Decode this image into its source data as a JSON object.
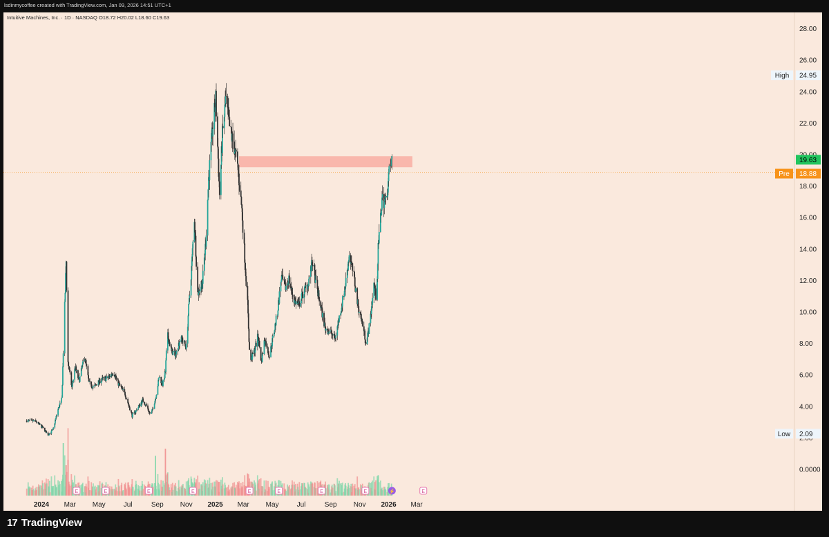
{
  "header": {
    "attribution": "lsdinmycoffee created with TradingView.com, Jan 09, 2026 14:51 UTC+1"
  },
  "legend": {
    "text": "Intuitive Machines, Inc. · 1D · NASDAQ  O18.72  H20.02  L18.60  C19.63"
  },
  "brand": {
    "logo": "17",
    "name": "TradingView"
  },
  "colors": {
    "background": "#fae9dd",
    "up": "#26a69a",
    "candle": "#333333",
    "volume_up": "#7fd6a9",
    "volume_down": "#f08f8f",
    "zone": "#f8b1a6",
    "last_price": "#22c55e",
    "pre_market": "#f7931a"
  },
  "chart_data": {
    "type": "candlestick",
    "symbol": "Intuitive Machines, Inc.",
    "interval": "1D",
    "exchange": "NASDAQ",
    "ohlc_last": {
      "open": 18.72,
      "high": 20.02,
      "low": 18.6,
      "close": 19.63
    },
    "y_ticks": [
      "28.00",
      "26.00",
      "24.00",
      "22.00",
      "20.00",
      "18.00",
      "16.00",
      "14.00",
      "12.00",
      "10.00",
      "8.00",
      "6.00",
      "4.00",
      "2.00",
      "0.0000"
    ],
    "x_ticks": [
      "2024",
      "Mar",
      "May",
      "Jul",
      "Sep",
      "Nov",
      "2025",
      "Mar",
      "May",
      "Jul",
      "Sep",
      "Nov",
      "2026",
      "Mar"
    ],
    "ylim": [
      -1.5,
      29.5
    ],
    "price_labels": {
      "high": {
        "label": "High",
        "value": "24.95"
      },
      "low": {
        "label": "Low",
        "value": "2.09"
      },
      "last": {
        "value": "19.63"
      },
      "pre": {
        "label": "Pre",
        "value": "18.88"
      }
    },
    "resistance_zone": {
      "from": "2025-02-20",
      "to": "2026-02-20",
      "low": 19.2,
      "high": 19.9
    },
    "path": [
      [
        "2023-12-01",
        3.1
      ],
      [
        "2023-12-20",
        3.05
      ],
      [
        "2024-01-05",
        2.6
      ],
      [
        "2024-01-15",
        2.2
      ],
      [
        "2024-01-25",
        2.5
      ],
      [
        "2024-02-05",
        3.8
      ],
      [
        "2024-02-13",
        4.5
      ],
      [
        "2024-02-16",
        7.5
      ],
      [
        "2024-02-22",
        13.2
      ],
      [
        "2024-02-26",
        6.8
      ],
      [
        "2024-03-05",
        5.2
      ],
      [
        "2024-03-12",
        6.5
      ],
      [
        "2024-03-20",
        5.6
      ],
      [
        "2024-04-01",
        7.2
      ],
      [
        "2024-04-10",
        5.5
      ],
      [
        "2024-04-20",
        5.2
      ],
      [
        "2024-05-05",
        5.7
      ],
      [
        "2024-05-20",
        5.8
      ],
      [
        "2024-06-01",
        6.2
      ],
      [
        "2024-06-10",
        5.5
      ],
      [
        "2024-06-25",
        4.8
      ],
      [
        "2024-07-10",
        3.4
      ],
      [
        "2024-07-20",
        3.8
      ],
      [
        "2024-08-01",
        4.4
      ],
      [
        "2024-08-10",
        4.0
      ],
      [
        "2024-08-18",
        3.4
      ],
      [
        "2024-08-28",
        4.5
      ],
      [
        "2024-09-05",
        5.9
      ],
      [
        "2024-09-12",
        5.4
      ],
      [
        "2024-09-18",
        6.2
      ],
      [
        "2024-09-22",
        8.6
      ],
      [
        "2024-10-01",
        7.5
      ],
      [
        "2024-10-10",
        7.3
      ],
      [
        "2024-10-20",
        8.4
      ],
      [
        "2024-11-01",
        7.8
      ],
      [
        "2024-11-05",
        9.8
      ],
      [
        "2024-11-12",
        12.8
      ],
      [
        "2024-11-18",
        16.0
      ],
      [
        "2024-11-25",
        11.2
      ],
      [
        "2024-12-05",
        11.9
      ],
      [
        "2024-12-12",
        14.5
      ],
      [
        "2024-12-18",
        18.5
      ],
      [
        "2024-12-26",
        21.5
      ],
      [
        "2025-01-02",
        23.5
      ],
      [
        "2025-01-06",
        20.5
      ],
      [
        "2025-01-10",
        17.5
      ],
      [
        "2025-01-16",
        21.2
      ],
      [
        "2025-01-23",
        23.5
      ],
      [
        "2025-02-01",
        21.5
      ],
      [
        "2025-02-10",
        20.5
      ],
      [
        "2025-02-18",
        19.0
      ],
      [
        "2025-02-26",
        16.5
      ],
      [
        "2025-03-05",
        13.0
      ],
      [
        "2025-03-10",
        10.5
      ],
      [
        "2025-03-15",
        6.8
      ],
      [
        "2025-03-25",
        7.6
      ],
      [
        "2025-04-01",
        8.5
      ],
      [
        "2025-04-08",
        6.8
      ],
      [
        "2025-04-15",
        8.3
      ],
      [
        "2025-04-25",
        7.2
      ],
      [
        "2025-05-05",
        8.8
      ],
      [
        "2025-05-12",
        10.0
      ],
      [
        "2025-05-20",
        12.2
      ],
      [
        "2025-05-28",
        11.5
      ],
      [
        "2025-06-05",
        12.1
      ],
      [
        "2025-06-15",
        10.8
      ],
      [
        "2025-06-25",
        10.4
      ],
      [
        "2025-07-05",
        11.2
      ],
      [
        "2025-07-15",
        11.8
      ],
      [
        "2025-07-25",
        13.2
      ],
      [
        "2025-08-01",
        11.8
      ],
      [
        "2025-08-10",
        10.5
      ],
      [
        "2025-08-20",
        9.0
      ],
      [
        "2025-09-01",
        8.7
      ],
      [
        "2025-09-10",
        8.3
      ],
      [
        "2025-09-20",
        9.8
      ],
      [
        "2025-10-01",
        11.5
      ],
      [
        "2025-10-10",
        13.7
      ],
      [
        "2025-10-20",
        12.2
      ],
      [
        "2025-10-28",
        10.5
      ],
      [
        "2025-11-05",
        9.5
      ],
      [
        "2025-11-15",
        8.0
      ],
      [
        "2025-11-22",
        9.2
      ],
      [
        "2025-12-01",
        11.8
      ],
      [
        "2025-12-06",
        10.8
      ],
      [
        "2025-12-10",
        14.0
      ],
      [
        "2025-12-18",
        17.2
      ],
      [
        "2025-12-26",
        17.0
      ],
      [
        "2026-01-02",
        18.8
      ],
      [
        "2026-01-08",
        19.63
      ]
    ],
    "earnings_markers": [
      {
        "date": "2024-03-15",
        "label": "E"
      },
      {
        "date": "2024-05-15",
        "label": "E"
      },
      {
        "date": "2024-08-14",
        "label": "E"
      },
      {
        "date": "2024-11-15",
        "label": "E"
      },
      {
        "date": "2025-03-14",
        "label": "E"
      },
      {
        "date": "2025-05-15",
        "label": "E"
      },
      {
        "date": "2025-08-13",
        "label": "E"
      },
      {
        "date": "2025-11-13",
        "label": "E"
      },
      {
        "date": "2026-01-08",
        "label": "⚡"
      },
      {
        "date": "2026-03-15",
        "label": "E"
      }
    ],
    "volume_spikes": [
      {
        "date": "2024-02-16",
        "v": 0.95,
        "dir": "up"
      },
      {
        "date": "2024-02-22",
        "v": 0.55,
        "dir": "down"
      },
      {
        "date": "2024-02-26",
        "v": 0.65,
        "dir": "down"
      },
      {
        "date": "2024-08-28",
        "v": 0.72,
        "dir": "up"
      },
      {
        "date": "2024-09-18",
        "v": 0.85,
        "dir": "down"
      },
      {
        "date": "2024-09-22",
        "v": 0.4,
        "dir": "down"
      },
      {
        "date": "2024-11-18",
        "v": 0.25,
        "dir": "up"
      },
      {
        "date": "2025-03-10",
        "v": 0.4,
        "dir": "down"
      },
      {
        "date": "2025-08-10",
        "v": 0.25,
        "dir": "down"
      },
      {
        "date": "2025-12-10",
        "v": 0.35,
        "dir": "up"
      }
    ]
  }
}
